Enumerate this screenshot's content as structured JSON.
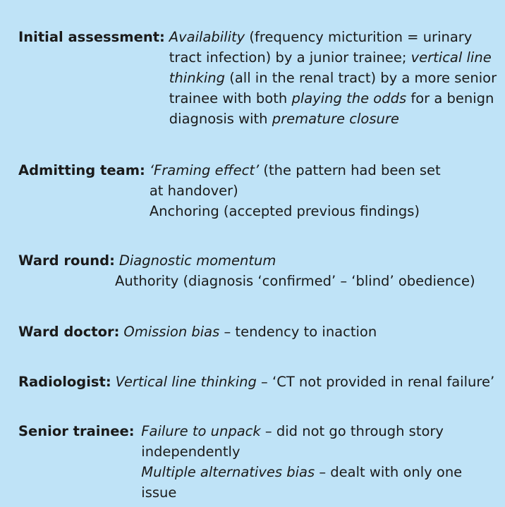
{
  "entries": [
    {
      "label": "Initial assessment:",
      "t1": "Availability",
      "t2": " (frequency micturition = urinary tract infection) by a junior trainee; ",
      "t3": "vertical line thinking",
      "t4": " (all in the renal tract) by a more senior trainee with both ",
      "t5": "playing the odds",
      "t6": " for a benign diagnosis with ",
      "t7": "premature closure"
    },
    {
      "label": "Admitting team:",
      "t1": "‘Framing effect’",
      "t2": " (the pattern had been set at handover)",
      "line2": "Anchoring (accepted previous findings)"
    },
    {
      "label": "Ward round:",
      "t1": "Diagnostic momentum",
      "line2": "Authority (diagnosis ‘confirmed’ – ‘blind’ obedience)"
    },
    {
      "label": "Ward doctor:",
      "t1": "Omission bias",
      "t2": " – tendency to inaction"
    },
    {
      "label": "Radiologist:",
      "t1": "Vertical line thinking",
      "t2": " – ‘CT not provided in renal failure’"
    },
    {
      "label": "Senior trainee:",
      "t1": "Failure to unpack",
      "t2": " – did not go through story independently",
      "t3": "Multiple alternatives bias",
      "t4": " – dealt with only one issue"
    }
  ]
}
